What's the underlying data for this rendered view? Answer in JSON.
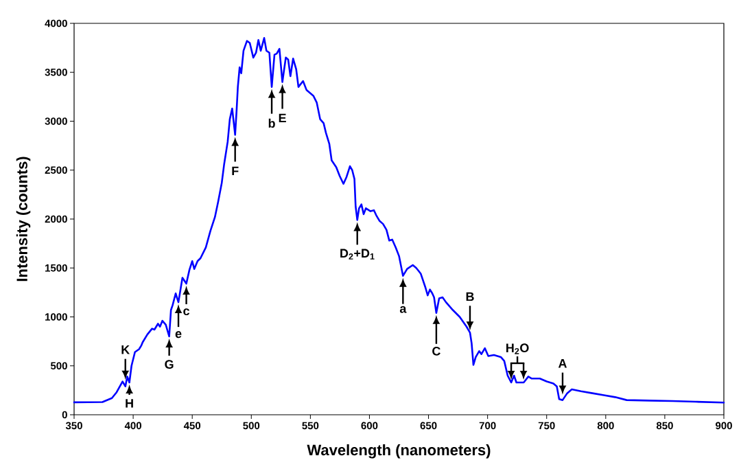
{
  "chart_data": {
    "type": "line",
    "xlabel": "Wavelength (nanometers)",
    "ylabel": "Intensity (counts)",
    "xlim": [
      350,
      900
    ],
    "ylim": [
      0,
      4000
    ],
    "xticks": [
      350,
      400,
      450,
      500,
      550,
      600,
      650,
      700,
      750,
      800,
      850,
      900
    ],
    "yticks": [
      0,
      500,
      1000,
      1500,
      2000,
      2500,
      3000,
      3500,
      4000
    ],
    "marker": "none",
    "line_style": "solid",
    "x": [
      350,
      374,
      382,
      386,
      391,
      393.4,
      395,
      396.8,
      398.6,
      401.5,
      405,
      407,
      408,
      412,
      416,
      418,
      421,
      422.7,
      424.7,
      427.6,
      430.5,
      432,
      433.4,
      436,
      438.3,
      441.7,
      445,
      447.6,
      450,
      451.7,
      454.5,
      457,
      461.5,
      465.4,
      469.2,
      472,
      475,
      477,
      480,
      481.8,
      483.8,
      486.3,
      487.6,
      488.6,
      490.1,
      491.5,
      493.4,
      496.3,
      498.7,
      501.7,
      504,
      506,
      508,
      510.9,
      512.8,
      515.3,
      517.3,
      519.6,
      521.5,
      523.8,
      526.3,
      529.2,
      531.2,
      533.1,
      535.4,
      538,
      539.9,
      543.8,
      546.7,
      549.6,
      552.5,
      555.4,
      558.3,
      561.2,
      563.2,
      566,
      568,
      571.9,
      574.8,
      578,
      580.6,
      583.5,
      585.4,
      587.3,
      588.3,
      589.7,
      591.2,
      593.2,
      595.1,
      597,
      600.9,
      603.8,
      605.7,
      608.6,
      611.5,
      614.4,
      616.8,
      619.3,
      622.2,
      625.1,
      628.4,
      631.9,
      636.7,
      639.6,
      641.6,
      643.5,
      647.4,
      649.3,
      651.2,
      653.2,
      654.7,
      656.6,
      659,
      661.9,
      664.8,
      670.6,
      676.4,
      682.2,
      685.1,
      686.5,
      688,
      690,
      692.9,
      694.8,
      697.7,
      700.6,
      705.4,
      711.2,
      714.1,
      717,
      720,
      722.4,
      724.4,
      730.6,
      734.5,
      737.4,
      744.2,
      750,
      755.7,
      758.6,
      760.6,
      763.5,
      767.4,
      771.3,
      779,
      788.7,
      798.4,
      808,
      817.7,
      837.1,
      856.5,
      875.8,
      900
    ],
    "series": [
      {
        "color": "#0000ff",
        "values": [
          127,
          130,
          170,
          230,
          340,
          290,
          390,
          330,
          500,
          640,
          670,
          710,
          740,
          820,
          880,
          870,
          930,
          900,
          960,
          920,
          800,
          1070,
          1120,
          1240,
          1150,
          1400,
          1340,
          1480,
          1570,
          1490,
          1570,
          1600,
          1710,
          1880,
          2020,
          2180,
          2370,
          2560,
          2790,
          3020,
          3130,
          2860,
          3120,
          3350,
          3550,
          3490,
          3720,
          3820,
          3800,
          3650,
          3700,
          3830,
          3720,
          3850,
          3720,
          3700,
          3350,
          3680,
          3690,
          3740,
          3400,
          3650,
          3630,
          3460,
          3640,
          3530,
          3350,
          3410,
          3320,
          3290,
          3260,
          3190,
          3020,
          2980,
          2880,
          2770,
          2600,
          2530,
          2440,
          2360,
          2430,
          2540,
          2500,
          2410,
          2130,
          1990,
          2110,
          2150,
          2050,
          2110,
          2080,
          2090,
          2040,
          1980,
          1950,
          1890,
          1780,
          1790,
          1710,
          1620,
          1420,
          1490,
          1530,
          1500,
          1470,
          1440,
          1300,
          1220,
          1280,
          1240,
          1200,
          1040,
          1190,
          1200,
          1150,
          1070,
          1000,
          900,
          840,
          730,
          510,
          590,
          650,
          620,
          680,
          600,
          610,
          590,
          550,
          400,
          330,
          400,
          330,
          330,
          390,
          370,
          370,
          340,
          320,
          290,
          160,
          150,
          220,
          260,
          240,
          220,
          200,
          180,
          150,
          145,
          140,
          133,
          125
        ]
      }
    ],
    "annotations": [
      {
        "text": "K",
        "x": 393.4,
        "y": 290
      },
      {
        "text": "H",
        "x": 396.8,
        "y": 330
      },
      {
        "text": "G",
        "x": 430.5,
        "y": 800
      },
      {
        "text": "e",
        "x": 438.3,
        "y": 1150
      },
      {
        "text": "c",
        "x": 445,
        "y": 1340
      },
      {
        "text": "F",
        "x": 486.3,
        "y": 2860
      },
      {
        "text": "b",
        "x": 517.3,
        "y": 3350
      },
      {
        "text": "E",
        "x": 526.3,
        "y": 3400
      },
      {
        "text": "D$_{2}$+D$_{1}$",
        "x": 589.7,
        "y": 1990
      },
      {
        "text": "a",
        "x": 628.4,
        "y": 1420
      },
      {
        "text": "C",
        "x": 656.6,
        "y": 1040
      },
      {
        "text": "B",
        "x": 685.1,
        "y": 840
      },
      {
        "text": "H$_{2}$O",
        "x": 720,
        "y": 330
      },
      {
        "text": "A",
        "x": 763.5,
        "y": 150
      }
    ]
  }
}
